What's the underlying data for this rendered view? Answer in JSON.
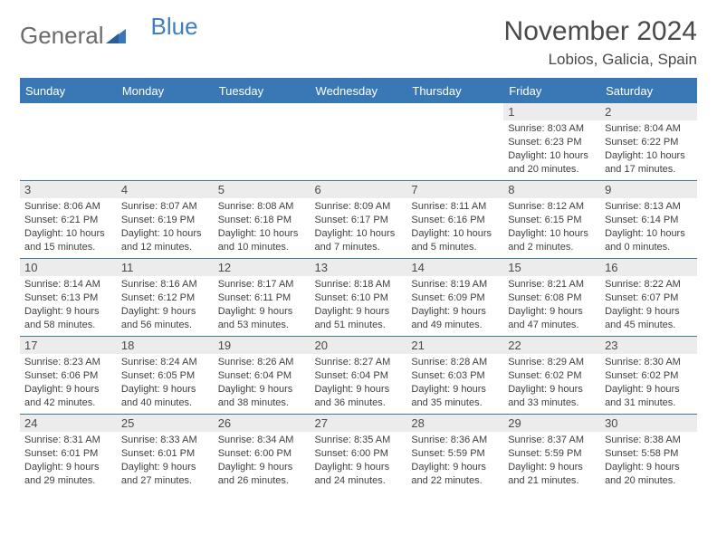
{
  "brand": {
    "part1": "General",
    "part2": "Blue",
    "triangle_color": "#3a78b5"
  },
  "title": "November 2024",
  "location": "Lobios, Galicia, Spain",
  "header_bg": "#3a78b5",
  "header_fg": "#ffffff",
  "divider_color": "#3a78b5",
  "daynum_bg": "#ececec",
  "weekdays": [
    "Sunday",
    "Monday",
    "Tuesday",
    "Wednesday",
    "Thursday",
    "Friday",
    "Saturday"
  ],
  "weeks": [
    [
      null,
      null,
      null,
      null,
      null,
      {
        "n": "1",
        "sr": "Sunrise: 8:03 AM",
        "ss": "Sunset: 6:23 PM",
        "d1": "Daylight: 10 hours",
        "d2": "and 20 minutes."
      },
      {
        "n": "2",
        "sr": "Sunrise: 8:04 AM",
        "ss": "Sunset: 6:22 PM",
        "d1": "Daylight: 10 hours",
        "d2": "and 17 minutes."
      }
    ],
    [
      {
        "n": "3",
        "sr": "Sunrise: 8:06 AM",
        "ss": "Sunset: 6:21 PM",
        "d1": "Daylight: 10 hours",
        "d2": "and 15 minutes."
      },
      {
        "n": "4",
        "sr": "Sunrise: 8:07 AM",
        "ss": "Sunset: 6:19 PM",
        "d1": "Daylight: 10 hours",
        "d2": "and 12 minutes."
      },
      {
        "n": "5",
        "sr": "Sunrise: 8:08 AM",
        "ss": "Sunset: 6:18 PM",
        "d1": "Daylight: 10 hours",
        "d2": "and 10 minutes."
      },
      {
        "n": "6",
        "sr": "Sunrise: 8:09 AM",
        "ss": "Sunset: 6:17 PM",
        "d1": "Daylight: 10 hours",
        "d2": "and 7 minutes."
      },
      {
        "n": "7",
        "sr": "Sunrise: 8:11 AM",
        "ss": "Sunset: 6:16 PM",
        "d1": "Daylight: 10 hours",
        "d2": "and 5 minutes."
      },
      {
        "n": "8",
        "sr": "Sunrise: 8:12 AM",
        "ss": "Sunset: 6:15 PM",
        "d1": "Daylight: 10 hours",
        "d2": "and 2 minutes."
      },
      {
        "n": "9",
        "sr": "Sunrise: 8:13 AM",
        "ss": "Sunset: 6:14 PM",
        "d1": "Daylight: 10 hours",
        "d2": "and 0 minutes."
      }
    ],
    [
      {
        "n": "10",
        "sr": "Sunrise: 8:14 AM",
        "ss": "Sunset: 6:13 PM",
        "d1": "Daylight: 9 hours",
        "d2": "and 58 minutes."
      },
      {
        "n": "11",
        "sr": "Sunrise: 8:16 AM",
        "ss": "Sunset: 6:12 PM",
        "d1": "Daylight: 9 hours",
        "d2": "and 56 minutes."
      },
      {
        "n": "12",
        "sr": "Sunrise: 8:17 AM",
        "ss": "Sunset: 6:11 PM",
        "d1": "Daylight: 9 hours",
        "d2": "and 53 minutes."
      },
      {
        "n": "13",
        "sr": "Sunrise: 8:18 AM",
        "ss": "Sunset: 6:10 PM",
        "d1": "Daylight: 9 hours",
        "d2": "and 51 minutes."
      },
      {
        "n": "14",
        "sr": "Sunrise: 8:19 AM",
        "ss": "Sunset: 6:09 PM",
        "d1": "Daylight: 9 hours",
        "d2": "and 49 minutes."
      },
      {
        "n": "15",
        "sr": "Sunrise: 8:21 AM",
        "ss": "Sunset: 6:08 PM",
        "d1": "Daylight: 9 hours",
        "d2": "and 47 minutes."
      },
      {
        "n": "16",
        "sr": "Sunrise: 8:22 AM",
        "ss": "Sunset: 6:07 PM",
        "d1": "Daylight: 9 hours",
        "d2": "and 45 minutes."
      }
    ],
    [
      {
        "n": "17",
        "sr": "Sunrise: 8:23 AM",
        "ss": "Sunset: 6:06 PM",
        "d1": "Daylight: 9 hours",
        "d2": "and 42 minutes."
      },
      {
        "n": "18",
        "sr": "Sunrise: 8:24 AM",
        "ss": "Sunset: 6:05 PM",
        "d1": "Daylight: 9 hours",
        "d2": "and 40 minutes."
      },
      {
        "n": "19",
        "sr": "Sunrise: 8:26 AM",
        "ss": "Sunset: 6:04 PM",
        "d1": "Daylight: 9 hours",
        "d2": "and 38 minutes."
      },
      {
        "n": "20",
        "sr": "Sunrise: 8:27 AM",
        "ss": "Sunset: 6:04 PM",
        "d1": "Daylight: 9 hours",
        "d2": "and 36 minutes."
      },
      {
        "n": "21",
        "sr": "Sunrise: 8:28 AM",
        "ss": "Sunset: 6:03 PM",
        "d1": "Daylight: 9 hours",
        "d2": "and 35 minutes."
      },
      {
        "n": "22",
        "sr": "Sunrise: 8:29 AM",
        "ss": "Sunset: 6:02 PM",
        "d1": "Daylight: 9 hours",
        "d2": "and 33 minutes."
      },
      {
        "n": "23",
        "sr": "Sunrise: 8:30 AM",
        "ss": "Sunset: 6:02 PM",
        "d1": "Daylight: 9 hours",
        "d2": "and 31 minutes."
      }
    ],
    [
      {
        "n": "24",
        "sr": "Sunrise: 8:31 AM",
        "ss": "Sunset: 6:01 PM",
        "d1": "Daylight: 9 hours",
        "d2": "and 29 minutes."
      },
      {
        "n": "25",
        "sr": "Sunrise: 8:33 AM",
        "ss": "Sunset: 6:01 PM",
        "d1": "Daylight: 9 hours",
        "d2": "and 27 minutes."
      },
      {
        "n": "26",
        "sr": "Sunrise: 8:34 AM",
        "ss": "Sunset: 6:00 PM",
        "d1": "Daylight: 9 hours",
        "d2": "and 26 minutes."
      },
      {
        "n": "27",
        "sr": "Sunrise: 8:35 AM",
        "ss": "Sunset: 6:00 PM",
        "d1": "Daylight: 9 hours",
        "d2": "and 24 minutes."
      },
      {
        "n": "28",
        "sr": "Sunrise: 8:36 AM",
        "ss": "Sunset: 5:59 PM",
        "d1": "Daylight: 9 hours",
        "d2": "and 22 minutes."
      },
      {
        "n": "29",
        "sr": "Sunrise: 8:37 AM",
        "ss": "Sunset: 5:59 PM",
        "d1": "Daylight: 9 hours",
        "d2": "and 21 minutes."
      },
      {
        "n": "30",
        "sr": "Sunrise: 8:38 AM",
        "ss": "Sunset: 5:58 PM",
        "d1": "Daylight: 9 hours",
        "d2": "and 20 minutes."
      }
    ]
  ]
}
